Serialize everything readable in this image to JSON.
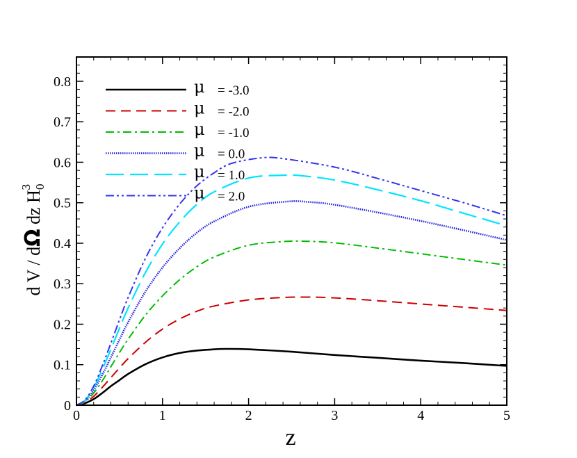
{
  "chart_data": {
    "type": "line",
    "xlabel": "z",
    "ylabel": {
      "text": "d V / d",
      "omega": "Ω",
      "after": " dz  H",
      "sub": "0",
      "sup": "3"
    },
    "xlim": [
      0,
      5
    ],
    "ylim": [
      0,
      0.86
    ],
    "x_ticks": [
      0,
      1,
      2,
      3,
      4,
      5
    ],
    "x_tick_labels": [
      "0",
      "1",
      "2",
      "3",
      "4",
      "5"
    ],
    "y_ticks": [
      0,
      0.1,
      0.2,
      0.3,
      0.4,
      0.5,
      0.6,
      0.7,
      0.8
    ],
    "y_tick_labels": [
      "0",
      "0.1",
      "0.2",
      "0.3",
      "0.4",
      "0.5",
      "0.6",
      "0.7",
      "0.8"
    ],
    "grid": false,
    "legend_position": "top-left",
    "series": [
      {
        "name": "μ = -3.0",
        "symbol": "μ",
        "value_label": "= -3.0",
        "color": "#000000",
        "dash": "solid",
        "x": [
          0,
          0.1,
          0.2,
          0.3,
          0.4,
          0.5,
          0.6,
          0.8,
          1.0,
          1.2,
          1.4,
          1.6,
          1.75,
          2.0,
          2.5,
          3.0,
          3.5,
          4.0,
          4.5,
          5.0
        ],
        "y": [
          0,
          0.005,
          0.015,
          0.03,
          0.047,
          0.062,
          0.077,
          0.101,
          0.118,
          0.129,
          0.135,
          0.138,
          0.139,
          0.138,
          0.132,
          0.124,
          0.117,
          0.11,
          0.104,
          0.097
        ]
      },
      {
        "name": "μ = -2.0",
        "symbol": "μ",
        "value_label": "= -2.0",
        "color": "#cc0000",
        "dash": "dash",
        "x": [
          0,
          0.1,
          0.2,
          0.3,
          0.4,
          0.5,
          0.6,
          0.8,
          1.0,
          1.2,
          1.4,
          1.6,
          2.0,
          2.4,
          2.7,
          3.0,
          3.5,
          4.0,
          4.5,
          5.0
        ],
        "y": [
          0,
          0.007,
          0.022,
          0.044,
          0.068,
          0.092,
          0.115,
          0.155,
          0.188,
          0.213,
          0.232,
          0.245,
          0.26,
          0.266,
          0.267,
          0.265,
          0.258,
          0.25,
          0.242,
          0.234
        ]
      },
      {
        "name": "μ = -1.0",
        "symbol": "μ",
        "value_label": "= -1.0",
        "color": "#00bb00",
        "dash": "dashdot",
        "x": [
          0,
          0.1,
          0.2,
          0.3,
          0.4,
          0.5,
          0.6,
          0.8,
          1.0,
          1.2,
          1.4,
          1.6,
          2.0,
          2.4,
          2.65,
          3.0,
          3.5,
          4.0,
          4.5,
          5.0
        ],
        "y": [
          0,
          0.009,
          0.03,
          0.06,
          0.095,
          0.13,
          0.163,
          0.222,
          0.27,
          0.31,
          0.342,
          0.366,
          0.395,
          0.404,
          0.405,
          0.401,
          0.388,
          0.374,
          0.36,
          0.346
        ]
      },
      {
        "name": "μ = 0.0",
        "symbol": "μ",
        "value_label": "= 0.0",
        "color": "#2222dd",
        "dash": "dotted",
        "x": [
          0,
          0.1,
          0.2,
          0.3,
          0.4,
          0.5,
          0.6,
          0.8,
          1.0,
          1.2,
          1.4,
          1.6,
          2.0,
          2.45,
          2.7,
          3.0,
          3.5,
          4.0,
          4.5,
          5.0
        ],
        "y": [
          0,
          0.011,
          0.037,
          0.075,
          0.118,
          0.162,
          0.205,
          0.28,
          0.34,
          0.388,
          0.426,
          0.454,
          0.49,
          0.503,
          0.502,
          0.495,
          0.476,
          0.455,
          0.432,
          0.408
        ]
      },
      {
        "name": "μ = 1.0",
        "symbol": "μ",
        "value_label": "= 1.0",
        "color": "#00e5ff",
        "dash": "longdash",
        "x": [
          0,
          0.1,
          0.2,
          0.3,
          0.4,
          0.5,
          0.6,
          0.8,
          1.0,
          1.2,
          1.4,
          1.6,
          2.0,
          2.4,
          2.6,
          3.0,
          3.5,
          4.0,
          4.5,
          5.0
        ],
        "y": [
          0,
          0.012,
          0.043,
          0.088,
          0.138,
          0.19,
          0.24,
          0.327,
          0.398,
          0.453,
          0.496,
          0.527,
          0.561,
          0.568,
          0.567,
          0.556,
          0.532,
          0.505,
          0.474,
          0.443
        ]
      },
      {
        "name": "μ = 2.0",
        "symbol": "μ",
        "value_label": "= 2.0",
        "color": "#3333ee",
        "dash": "dashdotdot",
        "x": [
          0,
          0.1,
          0.2,
          0.3,
          0.4,
          0.5,
          0.6,
          0.8,
          1.0,
          1.2,
          1.4,
          1.6,
          1.8,
          2.15,
          2.4,
          3.0,
          3.5,
          4.0,
          4.5,
          5.0
        ],
        "y": [
          0,
          0.013,
          0.047,
          0.097,
          0.153,
          0.211,
          0.266,
          0.362,
          0.438,
          0.497,
          0.542,
          0.574,
          0.597,
          0.611,
          0.609,
          0.588,
          0.56,
          0.53,
          0.5,
          0.468
        ]
      }
    ]
  }
}
